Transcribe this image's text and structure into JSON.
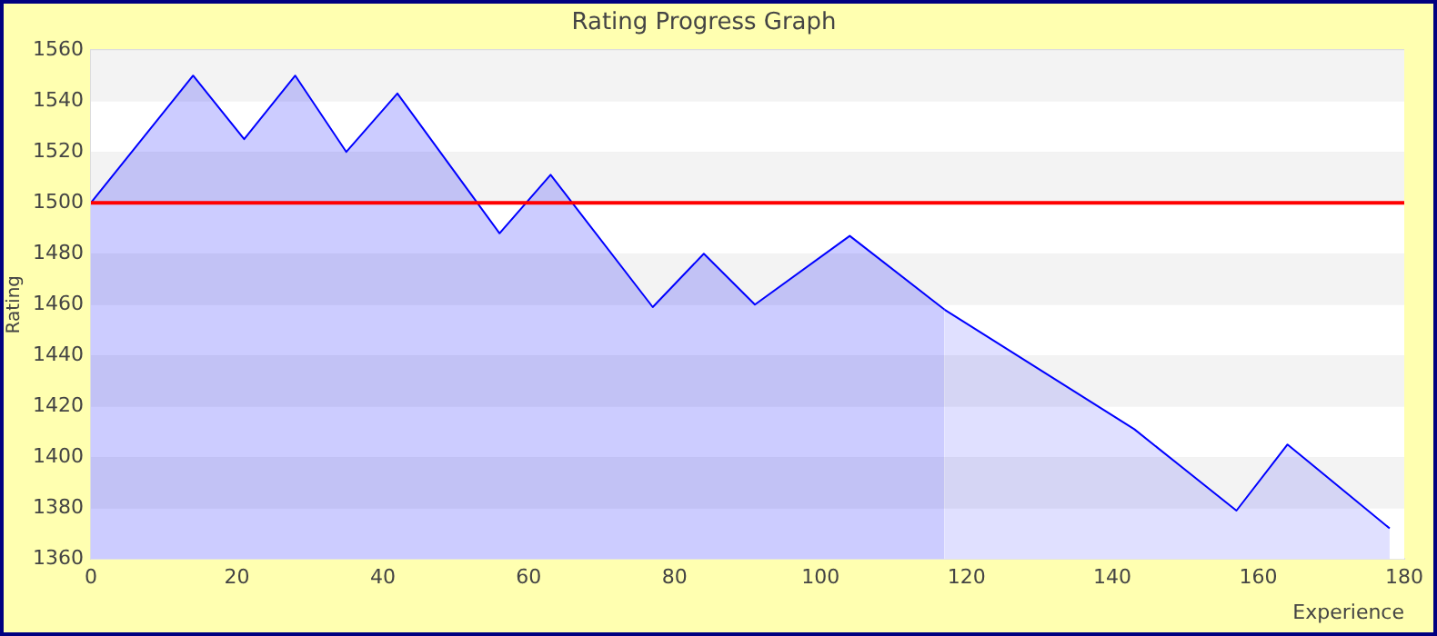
{
  "chart_data": {
    "type": "area",
    "title": "Rating Progress Graph",
    "xlabel": "Experience",
    "ylabel": "Rating",
    "series": [
      {
        "color": "#0000ff",
        "x": [
          0,
          7,
          14,
          21,
          28,
          35,
          42,
          56,
          63,
          77,
          84,
          91,
          104,
          117
        ],
        "values": [
          1500,
          1525,
          1550,
          1525,
          1550,
          1520,
          1543,
          1488,
          1511,
          1459,
          1480,
          1460,
          1487,
          1458
        ]
      },
      {
        "color": "#0000ff",
        "x": [
          117,
          143,
          157,
          164,
          178
        ],
        "values": [
          1458,
          1411,
          1379,
          1405,
          1372
        ]
      }
    ],
    "xlim": [
      0,
      180
    ],
    "xticks": [
      0,
      20,
      40,
      60,
      80,
      100,
      120,
      140,
      160,
      180
    ],
    "ylim": [
      1360,
      1560
    ],
    "yticks": [
      1360,
      1380,
      1400,
      1420,
      1440,
      1460,
      1480,
      1500,
      1520,
      1540,
      1560
    ],
    "ref_lines": [
      {
        "axis": "y",
        "value": 1500,
        "color": "#ff0000"
      }
    ],
    "grid": "y",
    "legend": false,
    "marker": "none",
    "line_style": "solid"
  }
}
